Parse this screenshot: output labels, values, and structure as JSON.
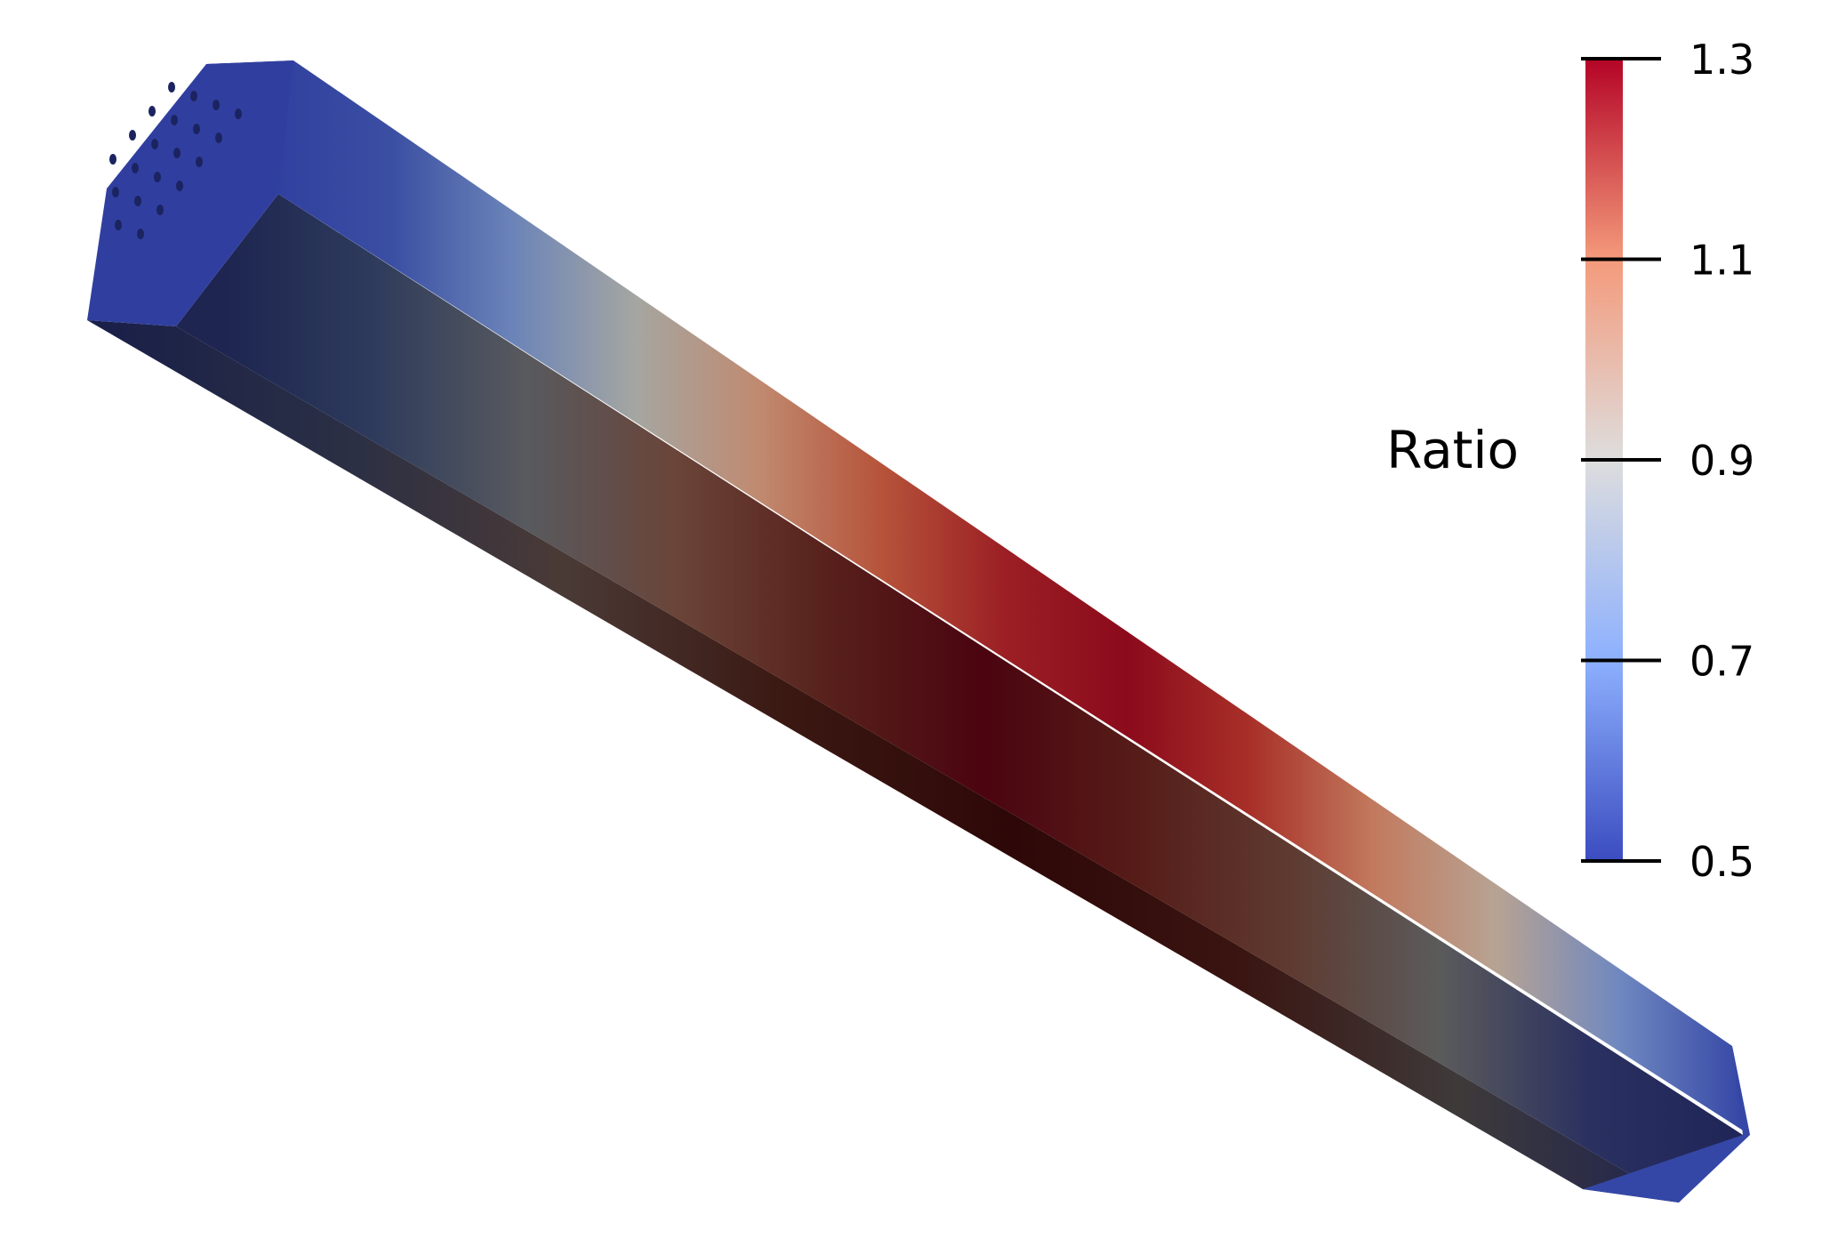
{
  "legend": {
    "title": "Ratio",
    "range": [
      0.5,
      1.3
    ],
    "ticks": [
      {
        "value": 1.3,
        "label": "1.3"
      },
      {
        "value": 1.1,
        "label": "1.1"
      },
      {
        "value": 0.9,
        "label": "0.9"
      },
      {
        "value": 0.7,
        "label": "0.7"
      },
      {
        "value": 0.5,
        "label": "0.5"
      }
    ],
    "colormap": [
      "#3b4cc0",
      "#8db0fe",
      "#dddddd",
      "#f49a7b",
      "#b40426"
    ]
  },
  "colors": {
    "top_face": [
      "#303f9f",
      "#3a4ea2",
      "#6b84b8",
      "#a5a6a1",
      "#c08a70",
      "#b6533a",
      "#9b1f24",
      "#8b0a1c",
      "#a83028",
      "#c27a5e",
      "#b7a393",
      "#6f88c0",
      "#3547a6"
    ],
    "side_face": [
      "#1d2550",
      "#2e3b5c",
      "#585a5e",
      "#6a4438",
      "#57201b",
      "#4b0410",
      "#561c18",
      "#5e3a30",
      "#5b5b5b",
      "#2a3060",
      "#1f2556"
    ],
    "bottom_face": [
      "#1a2048",
      "#2a2f45",
      "#4a3a36",
      "#3b1812",
      "#2e0808",
      "#3a1410",
      "#3e3a3a",
      "#1f2450"
    ],
    "end_cap": "#303f9f",
    "hole": "#1b2460"
  }
}
